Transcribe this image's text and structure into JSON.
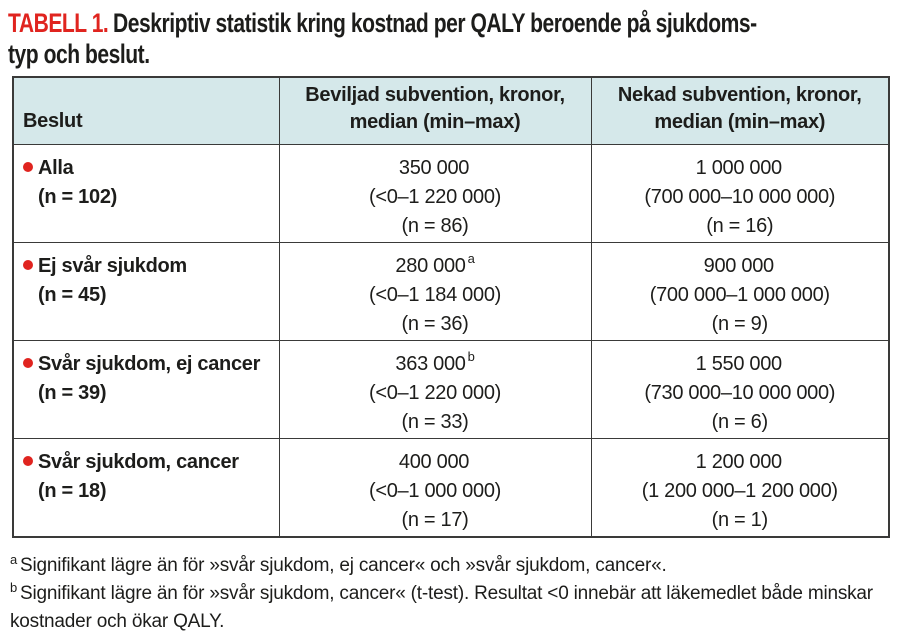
{
  "colors": {
    "accent_red": "#e0241f",
    "header_bg": "#d5e8ea",
    "border": "#3a3a39",
    "text": "#1d1d1b"
  },
  "title": {
    "tag": "TABELL 1.",
    "line1": "Deskriptiv statistik kring kostnad per QALY beroende på sjukdoms-",
    "line2": "typ och beslut."
  },
  "table": {
    "columns": {
      "beslut": "Beslut",
      "beviljad": "Beviljad subvention, kronor, median (min–max)",
      "nekad": "Nekad subvention, kronor, median (min–max)"
    },
    "rows": [
      {
        "label": "Alla",
        "n": "(n = 102)",
        "beviljad": {
          "median": "350 000",
          "sup": "",
          "range": "(<0–1 220 000)",
          "n": "(n = 86)"
        },
        "nekad": {
          "median": "1 000 000",
          "sup": "",
          "range": "(700 000–10 000 000)",
          "n": "(n = 16)"
        }
      },
      {
        "label": "Ej svår sjukdom",
        "n": "(n = 45)",
        "beviljad": {
          "median": "280 000",
          "sup": "a",
          "range": "(<0–1 184 000)",
          "n": "(n = 36)"
        },
        "nekad": {
          "median": "900 000",
          "sup": "",
          "range": "(700 000–1 000 000)",
          "n": "(n = 9)"
        }
      },
      {
        "label": "Svår sjukdom, ej cancer",
        "n": "(n = 39)",
        "beviljad": {
          "median": "363 000",
          "sup": "b",
          "range": "(<0–1 220 000)",
          "n": "(n = 33)"
        },
        "nekad": {
          "median": "1 550 000",
          "sup": "",
          "range": "(730 000–10 000 000)",
          "n": "(n = 6)"
        }
      },
      {
        "label": "Svår sjukdom, cancer",
        "n": "(n = 18)",
        "beviljad": {
          "median": "400 000",
          "sup": "",
          "range": "(<0–1 000 000)",
          "n": "(n = 17)"
        },
        "nekad": {
          "median": "1 200 000",
          "sup": "",
          "range": "(1 200 000–1 200 000)",
          "n": "(n = 1)"
        }
      }
    ]
  },
  "footnotes": [
    {
      "marker": "a",
      "text": "Signifikant lägre än för »svår sjukdom, ej cancer« och »svår sjukdom, cancer«."
    },
    {
      "marker": "b",
      "text": "Signifikant lägre än för »svår sjukdom, cancer« (t-test). Resultat <0 innebär att läkemedlet både minskar kostnader och ökar QALY."
    }
  ]
}
